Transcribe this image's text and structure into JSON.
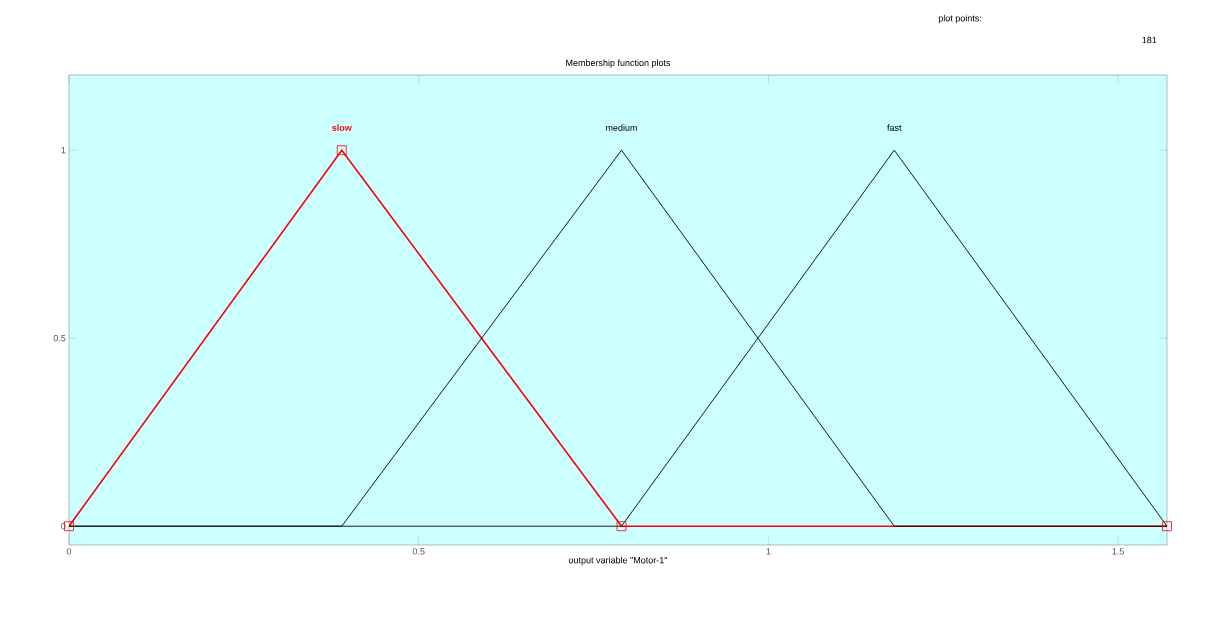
{
  "chart_data": {
    "type": "line",
    "title": "Membership function plots",
    "xlabel": "output variable \"Motor-1\"",
    "series": [
      {
        "name": "slow",
        "color": "#ff0000",
        "x": [
          0,
          0.39,
          0.79,
          1.57
        ],
        "values": [
          0,
          1,
          0,
          0
        ],
        "marker": "square"
      },
      {
        "name": "medium",
        "color": "#000000",
        "x": [
          0,
          0.39,
          0.79,
          1.18,
          1.57
        ],
        "values": [
          0,
          0,
          1,
          0,
          0
        ]
      },
      {
        "name": "fast",
        "color": "#000000",
        "x": [
          0,
          0.79,
          1.18,
          1.57
        ],
        "values": [
          0,
          0,
          1,
          0
        ]
      }
    ],
    "xlim": [
      0,
      1.57
    ],
    "ylim": [
      -0.05,
      1.2
    ],
    "xticks": [
      0,
      0.5,
      1,
      1.5
    ],
    "yticks": [
      0,
      0.5,
      1
    ],
    "grid": false,
    "line_style": "solid",
    "annotations": [
      "plot points:",
      "181"
    ]
  }
}
